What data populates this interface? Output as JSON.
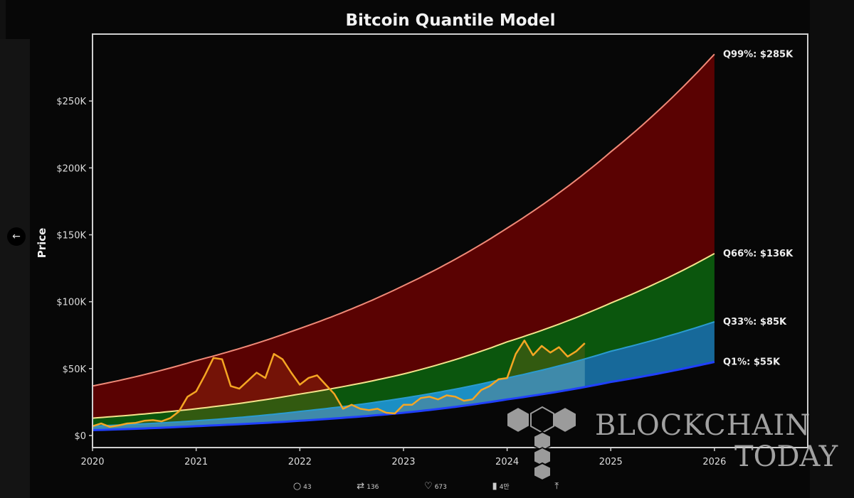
{
  "chart_data": {
    "type": "area",
    "title": "Bitcoin Quantile Model",
    "xlabel": "",
    "ylabel": "Price",
    "xlim": [
      2020,
      2026.9
    ],
    "ylim": [
      -9000,
      300000
    ],
    "x_ticks": [
      "2020",
      "2021",
      "2022",
      "2023",
      "2024",
      "2025",
      "2026"
    ],
    "y_ticks": [
      {
        "value": 0,
        "label": "$0"
      },
      {
        "value": 50000,
        "label": "$50K"
      },
      {
        "value": 100000,
        "label": "$100K"
      },
      {
        "value": 150000,
        "label": "$150K"
      },
      {
        "value": 200000,
        "label": "$200K"
      },
      {
        "value": 250000,
        "label": "$250K"
      }
    ],
    "grid": false,
    "quantile_years": [
      2020,
      2021,
      2022,
      2023,
      2024,
      2025,
      2026
    ],
    "quantiles": [
      {
        "name": "Q99%",
        "end_label": "Q99%: $285K",
        "values": [
          37000,
          56000,
          80000,
          112000,
          155000,
          212000,
          285000
        ],
        "line_color": "#f08a78"
      },
      {
        "name": "Q66%",
        "end_label": "Q66%: $136K",
        "values": [
          13000,
          20000,
          31000,
          46000,
          70000,
          99000,
          136000
        ],
        "line_color": "#f4e38a"
      },
      {
        "name": "Q33%",
        "end_label": "Q33%: $85K",
        "values": [
          7000,
          11000,
          18000,
          28000,
          43000,
          63000,
          85000
        ],
        "line_color": "#2a9bd0"
      },
      {
        "name": "Q1%",
        "end_label": "Q1%: $55K",
        "values": [
          4000,
          7000,
          11000,
          17000,
          27000,
          40000,
          55000
        ],
        "line_color": "#2040ff"
      }
    ],
    "band_colors": {
      "q66_q99": "#5a0202",
      "q33_q66": "#0b560d",
      "q1_q33": "#1b8fc4",
      "q1_q33_future": "#17699a"
    },
    "price_series": {
      "start": "2020-01",
      "frequency": "monthly",
      "color": "#f5a623",
      "values": [
        7000,
        9000,
        6500,
        7500,
        9000,
        9500,
        11000,
        11500,
        10600,
        13000,
        18000,
        29000,
        33000,
        45000,
        58000,
        57000,
        37000,
        35000,
        41000,
        47000,
        43000,
        61000,
        57000,
        47000,
        38000,
        43000,
        45000,
        38000,
        31000,
        20000,
        23000,
        20000,
        19000,
        20000,
        17000,
        16500,
        23000,
        23000,
        28000,
        29000,
        27000,
        30000,
        29000,
        26000,
        27000,
        34000,
        37000,
        42000,
        43000,
        61000,
        71000,
        60000,
        67000,
        62000,
        66000,
        59000,
        63000,
        69000
      ]
    }
  },
  "ui": {
    "back_icon": "arrow-left-icon",
    "actions": [
      {
        "icon": "reply-icon",
        "glyph": "○",
        "count": "43"
      },
      {
        "icon": "retweet-icon",
        "glyph": "⇄",
        "count": "136"
      },
      {
        "icon": "like-icon",
        "glyph": "♡",
        "count": "673"
      },
      {
        "icon": "views-icon",
        "glyph": "▮",
        "count": "4만"
      },
      {
        "icon": "share-icon",
        "glyph": "⤒",
        "count": ""
      }
    ]
  },
  "watermark": {
    "line1": "BLOCKCHAIN",
    "line2": "TODAY"
  }
}
